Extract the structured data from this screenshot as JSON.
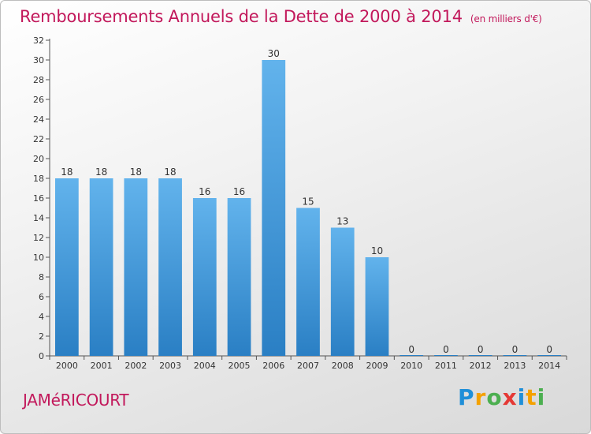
{
  "header": {
    "title": "Remboursements Annuels de la Dette de 2000 à 2014",
    "subtitle": "(en milliers d'€)"
  },
  "footer": {
    "commune": "JAMéRICOURT",
    "logo_letters": [
      "P",
      "r",
      "o",
      "x",
      "i",
      "t",
      "i"
    ]
  },
  "colors": {
    "title": "#c2185b",
    "bar_top": "#62b3ec",
    "bar_bottom": "#2a7fc4"
  },
  "chart_data": {
    "type": "bar",
    "title": "Remboursements Annuels de la Dette de 2000 à 2014",
    "subtitle": "(en milliers d'€)",
    "categories": [
      "2000",
      "2001",
      "2002",
      "2003",
      "2004",
      "2005",
      "2006",
      "2007",
      "2008",
      "2009",
      "2010",
      "2011",
      "2012",
      "2013",
      "2014"
    ],
    "values": [
      18,
      18,
      18,
      18,
      16,
      16,
      30,
      15,
      13,
      10,
      0,
      0,
      0,
      0,
      0
    ],
    "ylim": [
      0,
      32
    ],
    "yticks": [
      0,
      2,
      4,
      6,
      8,
      10,
      12,
      14,
      16,
      18,
      20,
      22,
      24,
      26,
      28,
      30,
      32
    ],
    "xlabel": "",
    "ylabel": "",
    "grid": false,
    "data_labels": true
  }
}
